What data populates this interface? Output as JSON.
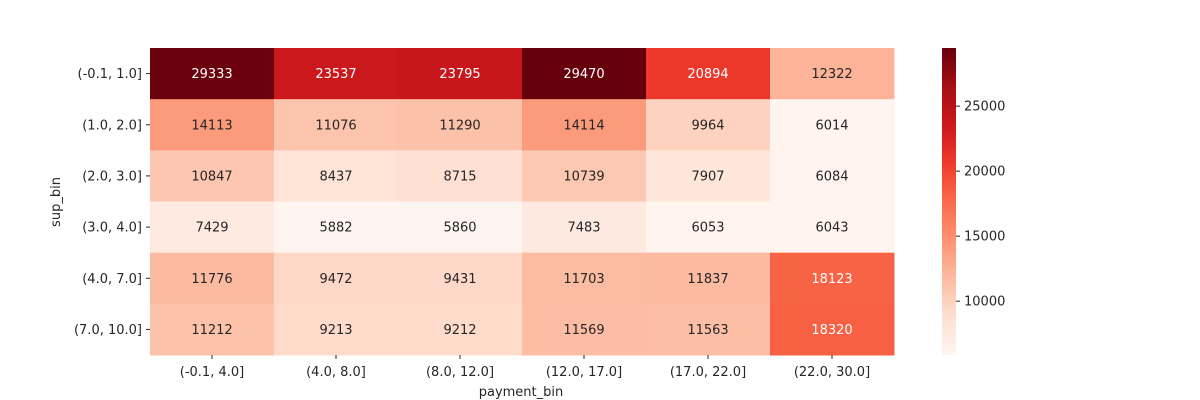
{
  "chart_data": {
    "type": "heatmap",
    "xlabel": "payment_bin",
    "ylabel": "sup_bin",
    "x_categories": [
      "(-0.1, 4.0]",
      "(4.0, 8.0]",
      "(8.0, 12.0]",
      "(12.0, 17.0]",
      "(17.0, 22.0]",
      "(22.0, 30.0]"
    ],
    "y_categories": [
      "(-0.1, 1.0]",
      "(1.0, 2.0]",
      "(2.0, 3.0]",
      "(3.0, 4.0]",
      "(4.0, 7.0]",
      "(7.0, 10.0]"
    ],
    "values": [
      [
        29333,
        23537,
        23795,
        29470,
        20894,
        12322
      ],
      [
        14113,
        11076,
        11290,
        14114,
        9964,
        6014
      ],
      [
        10847,
        8437,
        8715,
        10739,
        7907,
        6084
      ],
      [
        7429,
        5882,
        5860,
        7483,
        6053,
        6043
      ],
      [
        11776,
        9472,
        9431,
        11703,
        11837,
        18123
      ],
      [
        11212,
        9213,
        9212,
        11569,
        11563,
        18320
      ]
    ],
    "colormap": "Reds",
    "vmin": 5860,
    "vmax": 29470,
    "colorbar": {
      "ticks": [
        10000,
        15000,
        20000,
        25000
      ],
      "tick_labels": [
        "10000",
        "15000",
        "20000",
        "25000"
      ]
    },
    "annotated": true
  }
}
